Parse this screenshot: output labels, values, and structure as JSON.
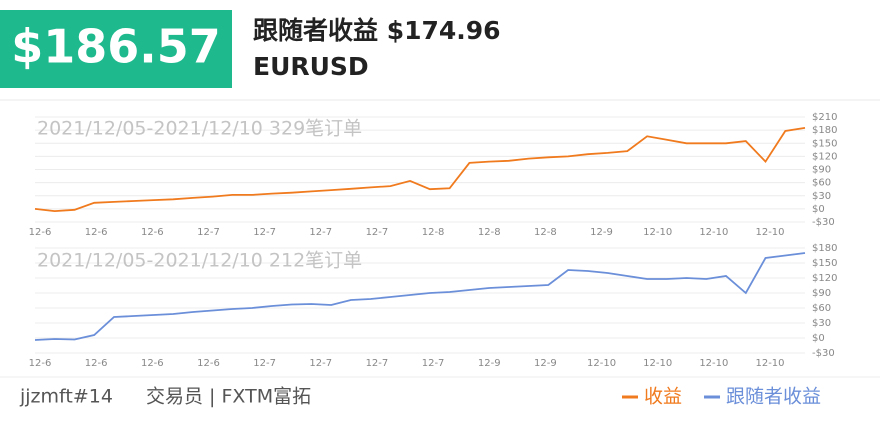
{
  "header": {
    "amount": "$186.57",
    "title": "跟随者收益 $174.96",
    "symbol": "EURUSD"
  },
  "chart_data": [
    {
      "type": "line",
      "subtitle": "2021/12/05-2021/12/10 329笔订单",
      "xtick_labels": [
        "12-6",
        "12-6",
        "12-6",
        "12-7",
        "12-7",
        "12-7",
        "12-7",
        "12-8",
        "12-8",
        "12-8",
        "12-9",
        "12-10",
        "12-10",
        "12-10"
      ],
      "series": [
        {
          "name": "收益",
          "color": "#f07a1e",
          "values": [
            0,
            -5,
            -2,
            14,
            16,
            18,
            20,
            22,
            25,
            28,
            32,
            32,
            35,
            37,
            40,
            43,
            46,
            49,
            52,
            64,
            45,
            47,
            105,
            108,
            110,
            115,
            118,
            120,
            125,
            128,
            132,
            166,
            158,
            150,
            150,
            150,
            155,
            108,
            178,
            185
          ]
        }
      ],
      "ylim": [
        -30,
        210
      ],
      "yticks": [
        {
          "value": -30,
          "label": "-$30"
        },
        {
          "value": 0,
          "label": "$0"
        },
        {
          "value": 30,
          "label": "$30"
        },
        {
          "value": 60,
          "label": "$60"
        },
        {
          "value": 90,
          "label": "$90"
        },
        {
          "value": 120,
          "label": "$120"
        },
        {
          "value": 150,
          "label": "$150"
        },
        {
          "value": 180,
          "label": "$180"
        },
        {
          "value": 210,
          "label": "$210"
        }
      ],
      "grid": true
    },
    {
      "type": "line",
      "subtitle": "2021/12/05-2021/12/10 212笔订单",
      "xtick_labels": [
        "12-6",
        "12-6",
        "12-6",
        "12-6",
        "12-7",
        "12-7",
        "12-7",
        "12-7",
        "12-9",
        "12-9",
        "12-10",
        "12-10",
        "12-10",
        "12-10"
      ],
      "series": [
        {
          "name": "跟随者收益",
          "color": "#6b8fd9",
          "values": [
            -4,
            -2,
            -3,
            6,
            42,
            44,
            46,
            48,
            52,
            55,
            58,
            60,
            64,
            67,
            68,
            66,
            76,
            78,
            82,
            86,
            90,
            92,
            96,
            100,
            102,
            104,
            106,
            136,
            134,
            130,
            124,
            118,
            118,
            120,
            118,
            124,
            90,
            160,
            165,
            170
          ]
        }
      ],
      "ylim": [
        -30,
        180
      ],
      "yticks": [
        {
          "value": -30,
          "label": "-$30"
        },
        {
          "value": 0,
          "label": "$0"
        },
        {
          "value": 30,
          "label": "$30"
        },
        {
          "value": 60,
          "label": "$60"
        },
        {
          "value": 90,
          "label": "$90"
        },
        {
          "value": 120,
          "label": "$120"
        },
        {
          "value": 150,
          "label": "$150"
        },
        {
          "value": 180,
          "label": "$180"
        }
      ],
      "grid": true
    }
  ],
  "footer": {
    "user": "jjzmft#14",
    "role": "交易员 | FXTM富拓"
  }
}
